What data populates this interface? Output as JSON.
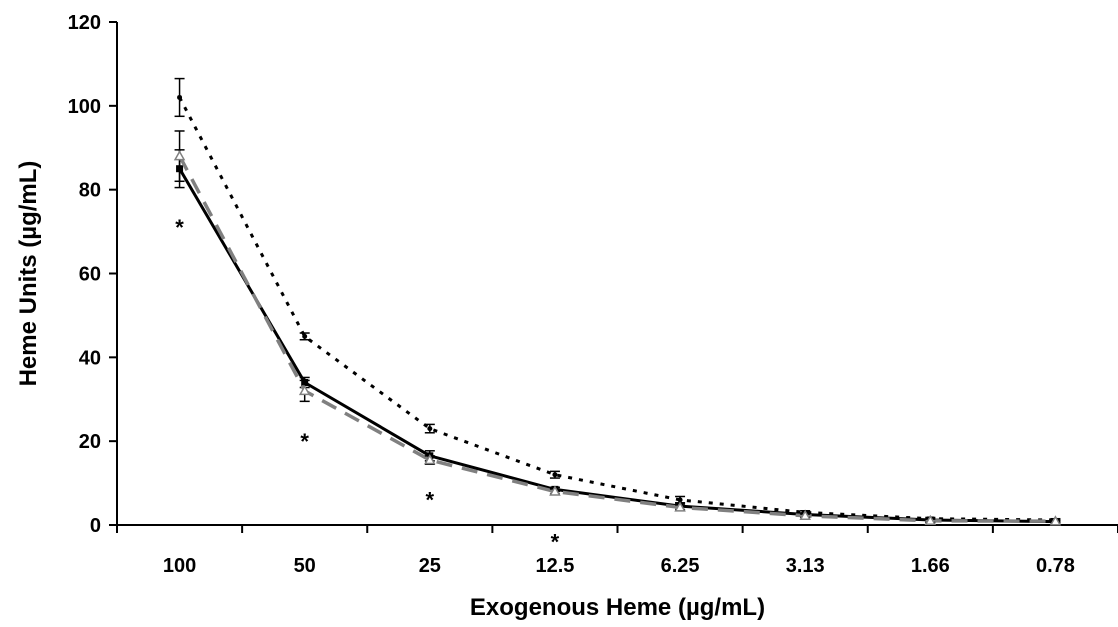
{
  "chart_data": {
    "type": "line",
    "title": "",
    "xlabel": "Exogenous Heme (µg/mL)",
    "ylabel": "Heme Units (µg/mL)",
    "categories": [
      "100",
      "50",
      "25",
      "12.5",
      "6.25",
      "3.13",
      "1.66",
      "0.78"
    ],
    "ylim": [
      0,
      120
    ],
    "yticks": [
      "0",
      "20",
      "40",
      "60",
      "80",
      "100",
      "120"
    ],
    "grid": false,
    "legend": "none",
    "series": [
      {
        "style": "dotted",
        "color": "#000000",
        "marker": "dot",
        "values": [
          102,
          45,
          23,
          12,
          6,
          3,
          1.5,
          1.2
        ],
        "errors": [
          4.5,
          0.8,
          1.0,
          0.8,
          0.8,
          0.4,
          0.3,
          0.3
        ]
      },
      {
        "style": "solid",
        "color": "#000000",
        "marker": "square",
        "values": [
          85,
          34,
          16.5,
          8.5,
          4.5,
          2.5,
          1.2,
          0.8
        ],
        "errors": [
          4.5,
          1.2,
          1.2,
          0.5,
          0.8,
          0.4,
          0.4,
          0.3
        ]
      },
      {
        "style": "dashed",
        "color": "#808080",
        "marker": "triangle",
        "values": [
          88,
          32,
          15.5,
          8,
          4.2,
          2.2,
          1.0,
          0.9
        ],
        "errors": [
          6,
          2.5,
          1.0,
          0.6,
          0.6,
          0.4,
          0.4,
          0.3
        ]
      }
    ],
    "annotations": [
      {
        "text": "*",
        "category": "100",
        "y": 72
      },
      {
        "text": "*",
        "category": "50",
        "y": 21
      },
      {
        "text": "*",
        "category": "25",
        "y": 7
      },
      {
        "text": "*",
        "category": "12.5",
        "y": -3
      }
    ]
  }
}
